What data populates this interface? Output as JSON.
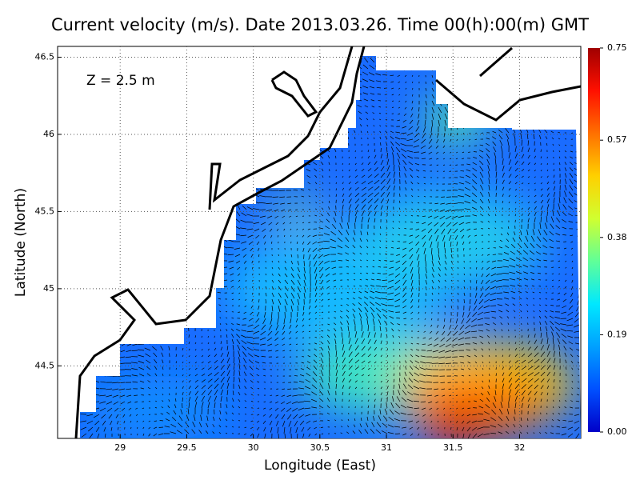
{
  "chart_data": {
    "type": "map",
    "title": "Current velocity (m/s). Date 2013.03.26. Time 00(h):00(m) GMT",
    "annotation": "Z = 2.5 m",
    "x_label": "Longitude (East)",
    "y_label": "Latitude (North)",
    "xlim": [
      28.53,
      32.46
    ],
    "ylim": [
      44.03,
      46.57
    ],
    "xticks": [
      29,
      29.5,
      30,
      30.5,
      31,
      31.5,
      32
    ],
    "yticks": [
      44.5,
      45,
      45.5,
      46,
      46.5
    ],
    "grid": true,
    "colorbar": {
      "lim": [
        0,
        0.75
      ],
      "ticks": [
        {
          "value": 0,
          "label": "0.00"
        },
        0.19,
        0.38,
        0.57,
        0.75
      ],
      "colors": [
        "#0000c8",
        "#0050ff",
        "#00a0ff",
        "#00e8ff",
        "#60ff98",
        "#d0ff30",
        "#ffd000",
        "#ff7000",
        "#ff1000",
        "#a00000"
      ]
    }
  }
}
